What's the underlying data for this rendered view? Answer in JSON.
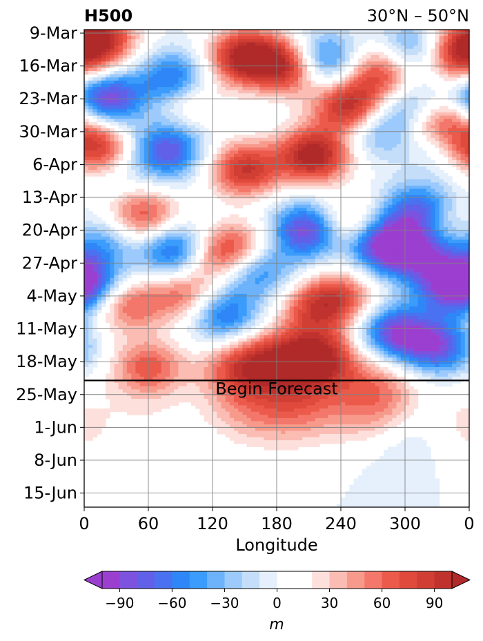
{
  "chart_data": {
    "type": "heatmap",
    "title_left": "H500",
    "title_right": "30°N – 50°N",
    "xlabel": "Longitude",
    "x_ticks": [
      "0",
      "60",
      "120",
      "180",
      "240",
      "300",
      "0"
    ],
    "x_range": [
      0,
      360
    ],
    "y_ticks": [
      "9-Mar",
      "16-Mar",
      "23-Mar",
      "30-Mar",
      "6-Apr",
      "13-Apr",
      "20-Apr",
      "27-Apr",
      "4-May",
      "11-May",
      "18-May",
      "25-May",
      "1-Jun",
      "8-Jun",
      "15-Jun"
    ],
    "y_range": [
      "9-Mar",
      "18-Jun"
    ],
    "forecast_line": {
      "date": "22-May",
      "label": "Begin Forecast"
    },
    "grid": true,
    "colorbar": {
      "label": "m",
      "ticks": [
        "−90",
        "−60",
        "−30",
        "0",
        "30",
        "60",
        "90"
      ],
      "levels": [
        -100,
        -90,
        -80,
        -70,
        -60,
        -50,
        -40,
        -30,
        -20,
        -10,
        0,
        10,
        20,
        30,
        40,
        50,
        60,
        70,
        80,
        90,
        100
      ],
      "extend": "both",
      "colors": [
        "#9b3fd0",
        "#7d52de",
        "#6060e8",
        "#4a72f0",
        "#2f86f7",
        "#3b9cfb",
        "#6cb3fb",
        "#9ccafc",
        "#c4def9",
        "#e5f0fc",
        "#ffffff",
        "#ffffff",
        "#fde0dc",
        "#fbbcb3",
        "#f79a8c",
        "#f3776a",
        "#eb5a4a",
        "#df4a3c",
        "#d03e34",
        "#c0322e",
        "#b12a2a"
      ],
      "under_color": "#9b3fd0",
      "over_color": "#b12a2a"
    },
    "anomalies": [
      {
        "lon": 15,
        "date": "10-Mar",
        "value": 90
      },
      {
        "lon": 150,
        "date": "14-Mar",
        "value": 110
      },
      {
        "lon": 195,
        "date": "16-Mar",
        "value": 120
      },
      {
        "lon": 250,
        "date": "25-Mar",
        "value": 110
      },
      {
        "lon": 215,
        "date": "4-Apr",
        "value": 110
      },
      {
        "lon": 150,
        "date": "7-Apr",
        "value": 90
      },
      {
        "lon": 330,
        "date": "28-Mar",
        "value": 100
      },
      {
        "lon": 350,
        "date": "14-Mar",
        "value": 80
      },
      {
        "lon": 280,
        "date": "17-Mar",
        "value": 80
      },
      {
        "lon": 8,
        "date": "2-Apr",
        "value": 95
      },
      {
        "lon": 100,
        "date": "23-Mar",
        "value": 40
      },
      {
        "lon": 218,
        "date": "15-Mar",
        "value": -100
      },
      {
        "lon": 20,
        "date": "23-Mar",
        "value": -95
      },
      {
        "lon": 85,
        "date": "19-Mar",
        "value": -75
      },
      {
        "lon": 78,
        "date": "3-Apr",
        "value": -80
      },
      {
        "lon": 270,
        "date": "29-Mar",
        "value": -55
      },
      {
        "lon": 305,
        "date": "13-Mar",
        "value": -60
      },
      {
        "lon": 310,
        "date": "25-Mar",
        "value": -60
      },
      {
        "lon": 335,
        "date": "1-Apr",
        "value": -45
      },
      {
        "lon": 40,
        "date": "12-Apr",
        "value": -35
      },
      {
        "lon": 315,
        "date": "16-Apr",
        "value": -80
      },
      {
        "lon": 60,
        "date": "18-Apr",
        "value": 55
      },
      {
        "lon": 45,
        "date": "14-Apr",
        "value": 50
      },
      {
        "lon": 150,
        "date": "24-Apr",
        "value": 50
      },
      {
        "lon": 245,
        "date": "19-Apr",
        "value": 60
      },
      {
        "lon": 340,
        "date": "19-Apr",
        "value": 45
      },
      {
        "lon": 210,
        "date": "20-Apr",
        "value": -100
      },
      {
        "lon": 280,
        "date": "23-Apr",
        "value": -105
      },
      {
        "lon": 315,
        "date": "25-Apr",
        "value": -70
      },
      {
        "lon": 85,
        "date": "24-Apr",
        "value": -85
      },
      {
        "lon": 12,
        "date": "22-Apr",
        "value": -50
      },
      {
        "lon": 125,
        "date": "25-Apr",
        "value": 65
      },
      {
        "lon": 40,
        "date": "6-May",
        "value": 60
      },
      {
        "lon": 95,
        "date": "4-May",
        "value": 60
      },
      {
        "lon": 130,
        "date": "8-May",
        "value": -70
      },
      {
        "lon": 160,
        "date": "28-Apr",
        "value": -70
      },
      {
        "lon": 215,
        "date": "7-May",
        "value": 60
      },
      {
        "lon": 240,
        "date": "4-May",
        "value": 60
      },
      {
        "lon": 345,
        "date": "2-May",
        "value": -80
      },
      {
        "lon": 3,
        "date": "1-May",
        "value": -55
      },
      {
        "lon": 290,
        "date": "12-May",
        "value": -90
      },
      {
        "lon": 330,
        "date": "15-May",
        "value": -80
      },
      {
        "lon": 220,
        "date": "17-May",
        "value": 80
      },
      {
        "lon": 180,
        "date": "17-May",
        "value": 50
      },
      {
        "lon": 145,
        "date": "19-May",
        "value": 50
      },
      {
        "lon": 60,
        "date": "19-May",
        "value": 60
      },
      {
        "lon": 200,
        "date": "25-May",
        "value": 60
      },
      {
        "lon": 275,
        "date": "26-May",
        "value": 70
      },
      {
        "lon": 150,
        "date": "26-May",
        "value": 40
      },
      {
        "lon": 300,
        "date": "2-Jun",
        "value": -30
      },
      {
        "lon": 350,
        "date": "1-Jun",
        "value": 25
      },
      {
        "lon": 60,
        "date": "28-May",
        "value": 15
      }
    ]
  }
}
